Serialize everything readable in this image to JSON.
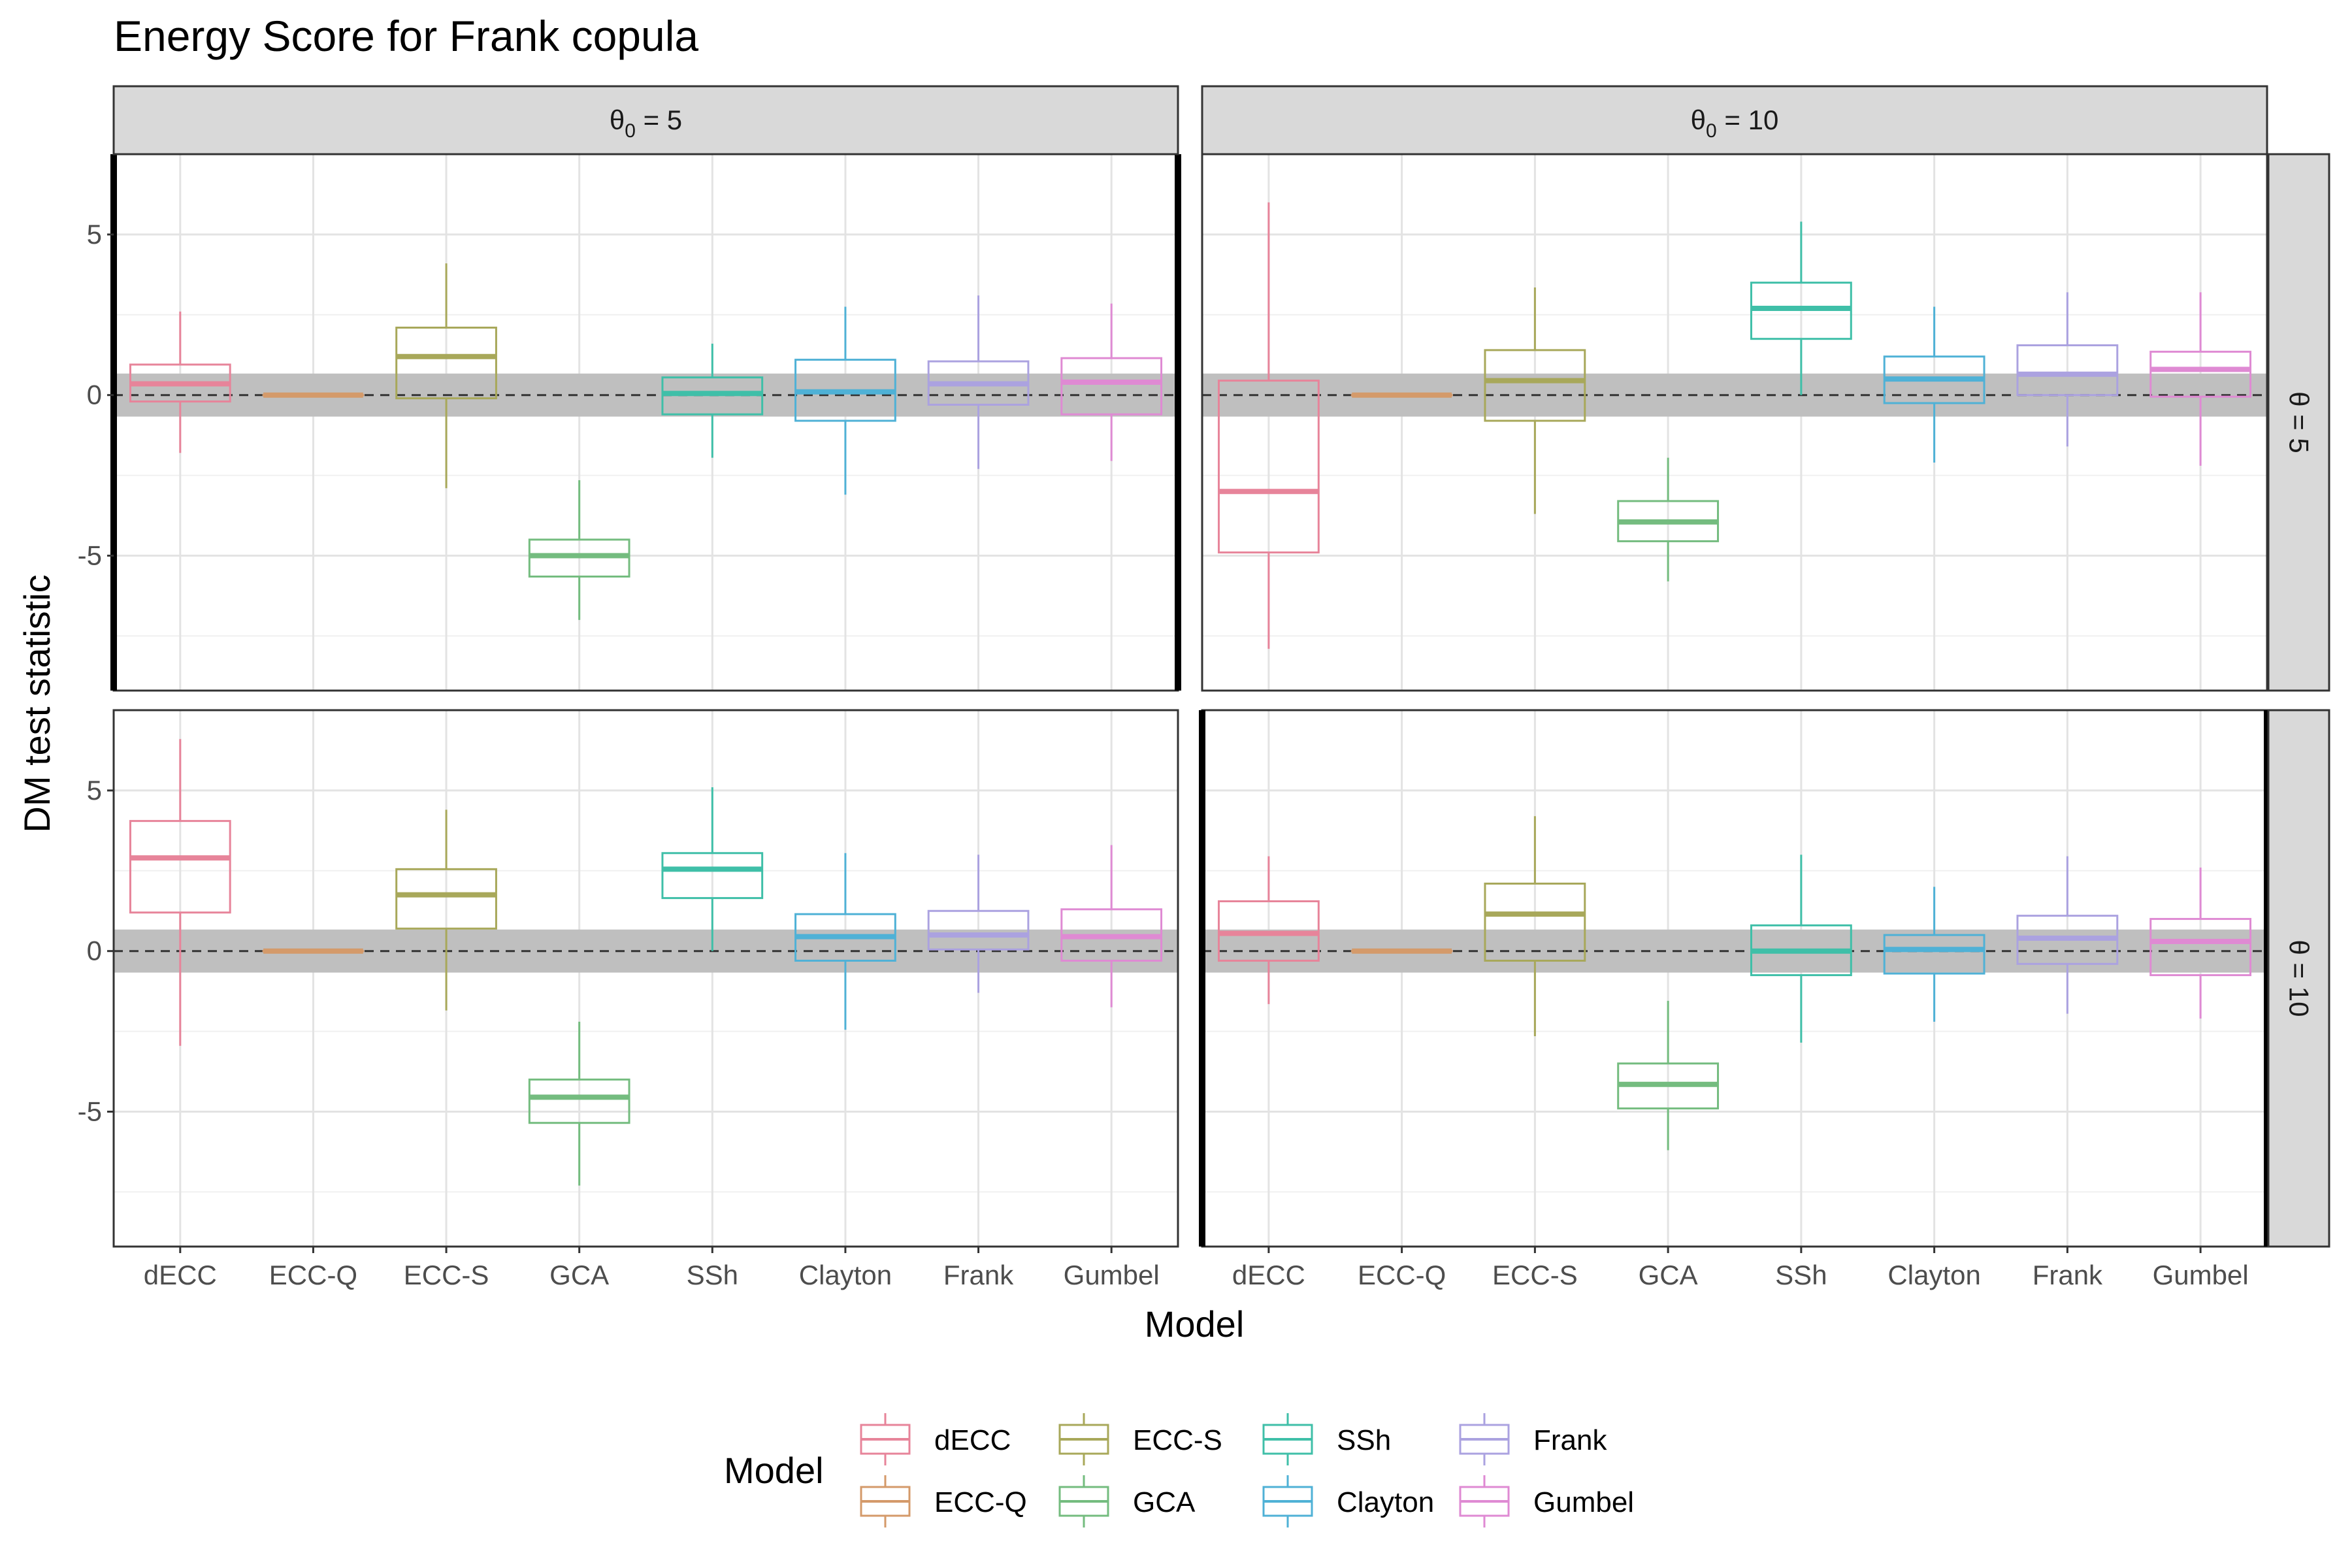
{
  "chart_data": {
    "type": "boxplot",
    "title": "Energy Score for Frank copula",
    "xlabel": "Model",
    "ylabel": "DM test statistic",
    "ylim": [
      -9.2,
      7.5
    ],
    "yticks": [
      5,
      0,
      -5
    ],
    "ytick_labels": [
      "5",
      "0",
      "-5"
    ],
    "reference_band": [
      -0.67,
      0.67
    ],
    "reference_line": 0,
    "grid": true,
    "legend_title": "Model",
    "legend_position": "bottom",
    "categories": [
      "dECC",
      "ECC-Q",
      "ECC-S",
      "GCA",
      "SSh",
      "Clayton",
      "Frank",
      "Gumbel"
    ],
    "colors": {
      "dECC": "#e7849a",
      "ECC-Q": "#d49a6a",
      "ECC-S": "#a8a85a",
      "GCA": "#74bc7f",
      "SSh": "#3fbfa8",
      "Clayton": "#4fb1d6",
      "Frank": "#aba2e0",
      "Gumbel": "#df8ad3"
    },
    "col_strips": [
      "5",
      "10"
    ],
    "row_strips": [
      "5",
      "10"
    ],
    "panels": [
      {
        "row": 0,
        "col": 0,
        "highlight": true,
        "boxes": {
          "dECC": {
            "min": -1.8,
            "q1": -0.2,
            "median": 0.35,
            "q3": 0.95,
            "max": 2.6
          },
          "ECC-Q": {
            "min": 0,
            "q1": 0,
            "median": 0,
            "q3": 0,
            "max": 0
          },
          "ECC-S": {
            "min": -2.9,
            "q1": -0.1,
            "median": 1.2,
            "q3": 2.1,
            "max": 4.1
          },
          "GCA": {
            "min": -7.0,
            "q1": -5.65,
            "median": -5.0,
            "q3": -4.5,
            "max": -2.65
          },
          "SSh": {
            "min": -1.95,
            "q1": -0.6,
            "median": 0.05,
            "q3": 0.55,
            "max": 1.6
          },
          "Clayton": {
            "min": -3.1,
            "q1": -0.8,
            "median": 0.1,
            "q3": 1.1,
            "max": 2.75
          },
          "Frank": {
            "min": -2.3,
            "q1": -0.3,
            "median": 0.35,
            "q3": 1.05,
            "max": 3.1
          },
          "Gumbel": {
            "min": -2.05,
            "q1": -0.6,
            "median": 0.4,
            "q3": 1.15,
            "max": 2.85
          }
        }
      },
      {
        "row": 0,
        "col": 1,
        "highlight": false,
        "boxes": {
          "dECC": {
            "min": -7.9,
            "q1": -4.9,
            "median": -3.0,
            "q3": 0.45,
            "max": 6.0
          },
          "ECC-Q": {
            "min": 0,
            "q1": 0,
            "median": 0,
            "q3": 0,
            "max": 0
          },
          "ECC-S": {
            "min": -3.7,
            "q1": -0.8,
            "median": 0.45,
            "q3": 1.4,
            "max": 3.35
          },
          "GCA": {
            "min": -5.8,
            "q1": -4.55,
            "median": -3.95,
            "q3": -3.3,
            "max": -1.95
          },
          "SSh": {
            "min": 0.0,
            "q1": 1.75,
            "median": 2.7,
            "q3": 3.5,
            "max": 5.4
          },
          "Clayton": {
            "min": -2.1,
            "q1": -0.25,
            "median": 0.5,
            "q3": 1.2,
            "max": 2.75
          },
          "Frank": {
            "min": -1.6,
            "q1": 0.0,
            "median": 0.65,
            "q3": 1.55,
            "max": 3.2
          },
          "Gumbel": {
            "min": -2.2,
            "q1": -0.05,
            "median": 0.8,
            "q3": 1.35,
            "max": 3.2
          }
        }
      },
      {
        "row": 1,
        "col": 0,
        "highlight": false,
        "boxes": {
          "dECC": {
            "min": -2.95,
            "q1": 1.2,
            "median": 2.9,
            "q3": 4.05,
            "max": 6.6
          },
          "ECC-Q": {
            "min": 0,
            "q1": 0,
            "median": 0,
            "q3": 0,
            "max": 0
          },
          "ECC-S": {
            "min": -1.85,
            "q1": 0.7,
            "median": 1.75,
            "q3": 2.55,
            "max": 4.4
          },
          "GCA": {
            "min": -7.3,
            "q1": -5.35,
            "median": -4.55,
            "q3": -4.0,
            "max": -2.2
          },
          "SSh": {
            "min": 0.0,
            "q1": 1.65,
            "median": 2.55,
            "q3": 3.05,
            "max": 5.1
          },
          "Clayton": {
            "min": -2.45,
            "q1": -0.3,
            "median": 0.45,
            "q3": 1.15,
            "max": 3.05
          },
          "Frank": {
            "min": -1.3,
            "q1": 0.05,
            "median": 0.5,
            "q3": 1.25,
            "max": 3.0
          },
          "Gumbel": {
            "min": -1.75,
            "q1": -0.3,
            "median": 0.45,
            "q3": 1.3,
            "max": 3.3
          }
        }
      },
      {
        "row": 1,
        "col": 1,
        "highlight": true,
        "boxes": {
          "dECC": {
            "min": -1.65,
            "q1": -0.3,
            "median": 0.55,
            "q3": 1.55,
            "max": 2.95
          },
          "ECC-Q": {
            "min": 0,
            "q1": 0,
            "median": 0,
            "q3": 0,
            "max": 0
          },
          "ECC-S": {
            "min": -2.65,
            "q1": -0.3,
            "median": 1.15,
            "q3": 2.1,
            "max": 4.2
          },
          "GCA": {
            "min": -6.2,
            "q1": -4.9,
            "median": -4.15,
            "q3": -3.5,
            "max": -1.55
          },
          "SSh": {
            "min": -2.85,
            "q1": -0.75,
            "median": 0.0,
            "q3": 0.8,
            "max": 3.0
          },
          "Clayton": {
            "min": -2.2,
            "q1": -0.7,
            "median": 0.05,
            "q3": 0.5,
            "max": 2.0
          },
          "Frank": {
            "min": -1.95,
            "q1": -0.4,
            "median": 0.4,
            "q3": 1.1,
            "max": 2.95
          },
          "Gumbel": {
            "min": -2.1,
            "q1": -0.75,
            "median": 0.3,
            "q3": 1.0,
            "max": 2.6
          }
        }
      }
    ]
  }
}
